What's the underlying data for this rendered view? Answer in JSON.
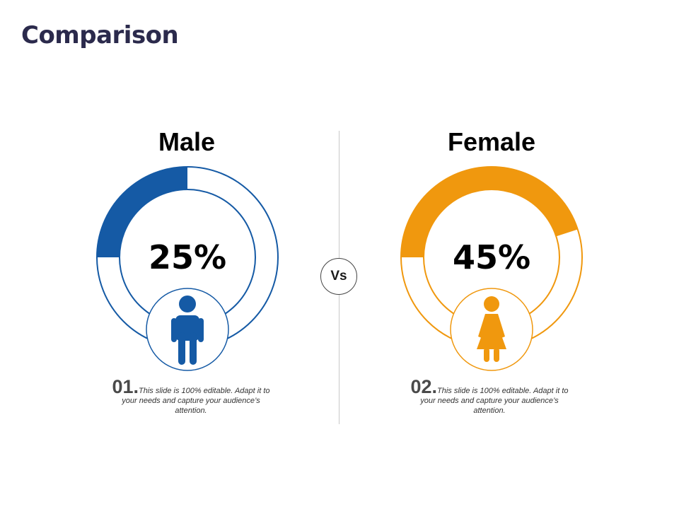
{
  "title": "Comparison",
  "vs_label": "Vs",
  "colors": {
    "male": "#155aa5",
    "female": "#f0980e",
    "title": "#2b2a4c"
  },
  "chart_data": {
    "type": "pie",
    "title": "Comparison",
    "categories": [
      "Male",
      "Female"
    ],
    "values": [
      25,
      45
    ],
    "value_labels": [
      "25%",
      "45%"
    ],
    "unit": "%"
  },
  "male": {
    "label": "Male",
    "value_label": "25%",
    "icon": "male-person-icon",
    "number": "01.",
    "text": "This slide is 100% editable. Adapt it to your needs and capture your audience’s attention."
  },
  "female": {
    "label": "Female",
    "value_label": "45%",
    "icon": "female-person-icon",
    "number": "02.",
    "text": "This slide is 100% editable. Adapt it to your needs and capture your audience’s attention."
  }
}
